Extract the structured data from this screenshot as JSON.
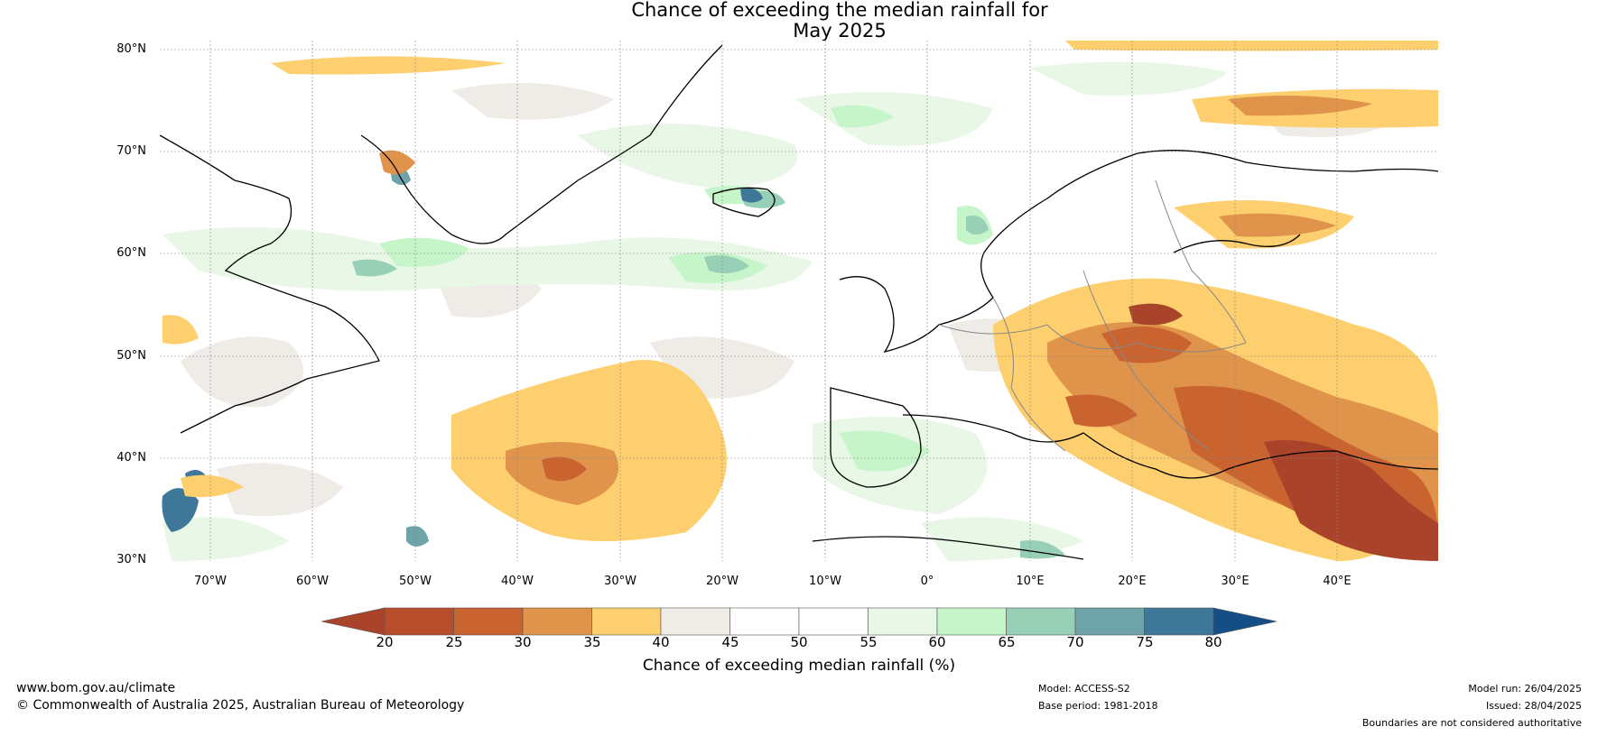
{
  "title_line1": "Chance of exceeding the median rainfall for",
  "title_line2": "May 2025",
  "lat_labels": [
    "80°N",
    "70°N",
    "60°N",
    "50°N",
    "40°N",
    "30°N"
  ],
  "lon_labels": [
    "70°W",
    "60°W",
    "50°W",
    "40°W",
    "30°W",
    "20°W",
    "10°W",
    "0°",
    "10°E",
    "20°E",
    "30°E",
    "40°E"
  ],
  "colorbar": {
    "ticks": [
      "20",
      "25",
      "30",
      "35",
      "40",
      "45",
      "50",
      "55",
      "60",
      "65",
      "70",
      "75",
      "80"
    ],
    "colors": [
      "#a9442a",
      "#b84d2b",
      "#c9632f",
      "#e0934a",
      "#fdcf6e",
      "#efebe6",
      "#ffffff",
      "#ffffff",
      "#e8f7e6",
      "#c5f5c8",
      "#98cfb7",
      "#6ea3a9",
      "#3e7797",
      "#154d86"
    ],
    "title": "Chance of exceeding median rainfall (%)"
  },
  "footer": {
    "website": "www.bom.gov.au/climate",
    "copyright": "© Commonwealth of Australia 2025, Australian Bureau of Meteorology",
    "model": "Model: ACCESS-S2",
    "base_period": "Base period: 1981-2018",
    "model_run": "Model run: 26/04/2025",
    "issued": "Issued: 28/04/2025",
    "disclaimer": "Boundaries are not considered authoritative"
  }
}
